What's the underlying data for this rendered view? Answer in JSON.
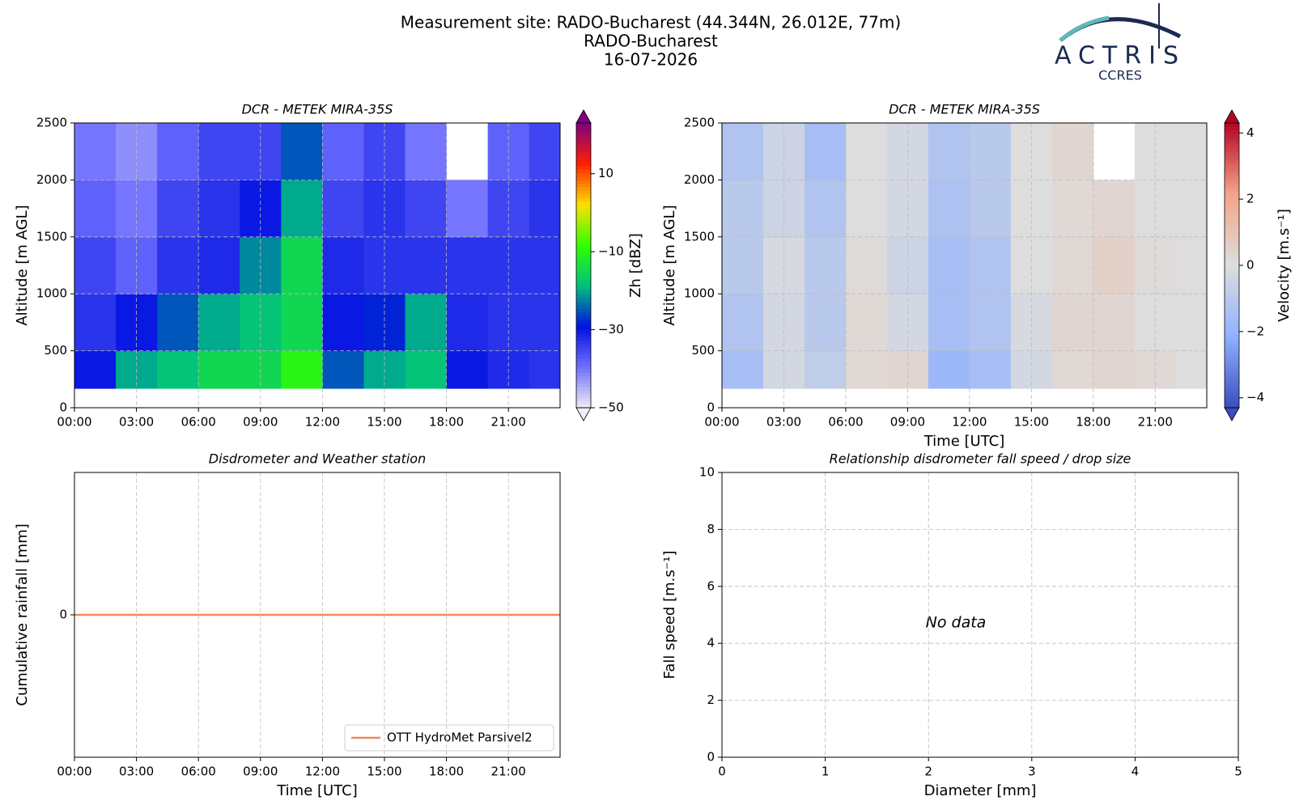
{
  "header": {
    "lines": [
      "Measurement site: RADO-Bucharest (44.344N, 26.012E, 77m)",
      "RADO-Bucharest",
      "16-07-2026"
    ],
    "logo": {
      "name": "ACTRIS",
      "sub": "CCRES"
    }
  },
  "chart_data": [
    {
      "type": "heatmap",
      "title": "DCR - METEK MIRA-35S",
      "ylabel": "Altitude [m AGL]",
      "xlim": [
        0,
        23.5
      ],
      "xticks": [
        {
          "value": 0,
          "label": "00:00"
        },
        {
          "value": 3,
          "label": "03:00"
        },
        {
          "value": 6,
          "label": "06:00"
        },
        {
          "value": 9,
          "label": "09:00"
        },
        {
          "value": 12,
          "label": "12:00"
        },
        {
          "value": 15,
          "label": "15:00"
        },
        {
          "value": 18,
          "label": "18:00"
        },
        {
          "value": 21,
          "label": "21:00"
        }
      ],
      "ylim": [
        0,
        2500
      ],
      "yticks": [
        0,
        500,
        1000,
        1500,
        2000,
        2500
      ],
      "grid": true,
      "x": [
        0,
        2,
        4,
        6,
        8,
        10,
        12,
        14,
        16,
        18,
        20,
        22,
        23.5
      ],
      "y": [
        170,
        500,
        1000,
        1500,
        2000,
        2500
      ],
      "z": [
        [
          -30,
          -20,
          -18,
          -15,
          -15,
          -10,
          -25,
          -20,
          -18,
          -30,
          -32,
          -33
        ],
        [
          -33,
          -30,
          -25,
          -20,
          -18,
          -15,
          -30,
          -28,
          -20,
          -32,
          -33,
          -33
        ],
        [
          -35,
          -38,
          -33,
          -32,
          -22,
          -15,
          -32,
          -33,
          -33,
          -33,
          -33,
          -33
        ],
        [
          -38,
          -40,
          -35,
          -33,
          -30,
          -20,
          -35,
          -33,
          -35,
          -40,
          -35,
          -33
        ],
        [
          -40,
          -42,
          -38,
          -35,
          -35,
          -25,
          -38,
          -35,
          -40,
          null,
          -38,
          -35
        ]
      ],
      "colorbar": {
        "label": "Zh [dBZ]",
        "clim": [
          -50,
          23
        ],
        "ticks": [
          {
            "value": -50,
            "label": "−50"
          },
          {
            "value": -30,
            "label": "−30"
          },
          {
            "value": -10,
            "label": "−10"
          },
          10
        ],
        "colormap": [
          "#eeeef4",
          "#7070ff",
          "#0010e0",
          "#00c080",
          "#30ff00",
          "#ffe000",
          "#ff2000",
          "#800080"
        ]
      }
    },
    {
      "type": "heatmap",
      "title": "DCR - METEK MIRA-35S",
      "ylabel": "Altitude [m AGL]",
      "xlabel": "Time [UTC]",
      "xlim": [
        0,
        23.5
      ],
      "xticks": [
        {
          "value": 0,
          "label": "00:00"
        },
        {
          "value": 3,
          "label": "03:00"
        },
        {
          "value": 6,
          "label": "06:00"
        },
        {
          "value": 9,
          "label": "09:00"
        },
        {
          "value": 12,
          "label": "12:00"
        },
        {
          "value": 15,
          "label": "15:00"
        },
        {
          "value": 18,
          "label": "18:00"
        },
        {
          "value": 21,
          "label": "21:00"
        }
      ],
      "ylim": [
        0,
        2500
      ],
      "yticks": [
        0,
        500,
        1000,
        1500,
        2000,
        2500
      ],
      "grid": true,
      "x": [
        0,
        2,
        4,
        6,
        8,
        10,
        12,
        14,
        16,
        18,
        20,
        22,
        23.5
      ],
      "y": [
        170,
        500,
        1000,
        1500,
        2000,
        2500
      ],
      "z": [
        [
          -1.5,
          -0.3,
          -0.8,
          0.2,
          0.3,
          -1.8,
          -1.5,
          -0.3,
          0.2,
          0.3,
          0.2,
          0
        ],
        [
          -1.2,
          -0.3,
          -1,
          0.2,
          -0.3,
          -1.5,
          -1.2,
          -0.2,
          0.3,
          0.3,
          0,
          0
        ],
        [
          -1,
          -0.2,
          -1,
          0.1,
          -0.5,
          -1.5,
          -1.2,
          0,
          0.2,
          0.5,
          0.1,
          0
        ],
        [
          -1,
          -0.5,
          -1.2,
          0,
          -0.3,
          -1.3,
          -1,
          0,
          0.2,
          0.3,
          0,
          0
        ],
        [
          -1.2,
          -0.5,
          -1.5,
          0,
          -0.3,
          -1.2,
          -1,
          0,
          0.3,
          null,
          0,
          0
        ]
      ],
      "colorbar": {
        "label": "Velocity [m.s⁻¹]",
        "clim": [
          -4.3,
          4.3
        ],
        "ticks": [
          {
            "value": -4,
            "label": "−4"
          },
          {
            "value": -2,
            "label": "−2"
          },
          0,
          2,
          4
        ],
        "colormap": [
          "#3a4cc0",
          "#8fb1fe",
          "#dddddd",
          "#f4a688",
          "#b40426"
        ]
      }
    },
    {
      "type": "line",
      "title": "Disdrometer and Weather station",
      "ylabel": "Cumulative rainfall [mm]",
      "xlabel": "Time [UTC]",
      "xlim": [
        0,
        23.5
      ],
      "xticks": [
        {
          "value": 0,
          "label": "00:00"
        },
        {
          "value": 3,
          "label": "03:00"
        },
        {
          "value": 6,
          "label": "06:00"
        },
        {
          "value": 9,
          "label": "09:00"
        },
        {
          "value": 12,
          "label": "12:00"
        },
        {
          "value": 15,
          "label": "15:00"
        },
        {
          "value": 18,
          "label": "18:00"
        },
        {
          "value": 21,
          "label": "21:00"
        }
      ],
      "ylim": [
        -1,
        1
      ],
      "yticks": [
        0
      ],
      "grid": "x",
      "legend": "lower right",
      "x": [
        0,
        23.5
      ],
      "series": [
        {
          "name": "OTT HydroMet Parsivel2",
          "color": "#ee8a5e",
          "values": [
            0,
            0
          ]
        }
      ]
    },
    {
      "type": "scatter",
      "title": "Relationship disdrometer fall speed / drop size",
      "ylabel": "Fall speed [m.s⁻¹]",
      "xlabel": "Diameter [mm]",
      "xlim": [
        0,
        5
      ],
      "xticks": [
        0,
        1,
        2,
        3,
        4,
        5
      ],
      "ylim": [
        0,
        10
      ],
      "yticks": [
        0,
        2,
        4,
        6,
        8,
        10
      ],
      "grid": true,
      "annotation": "No data"
    }
  ]
}
